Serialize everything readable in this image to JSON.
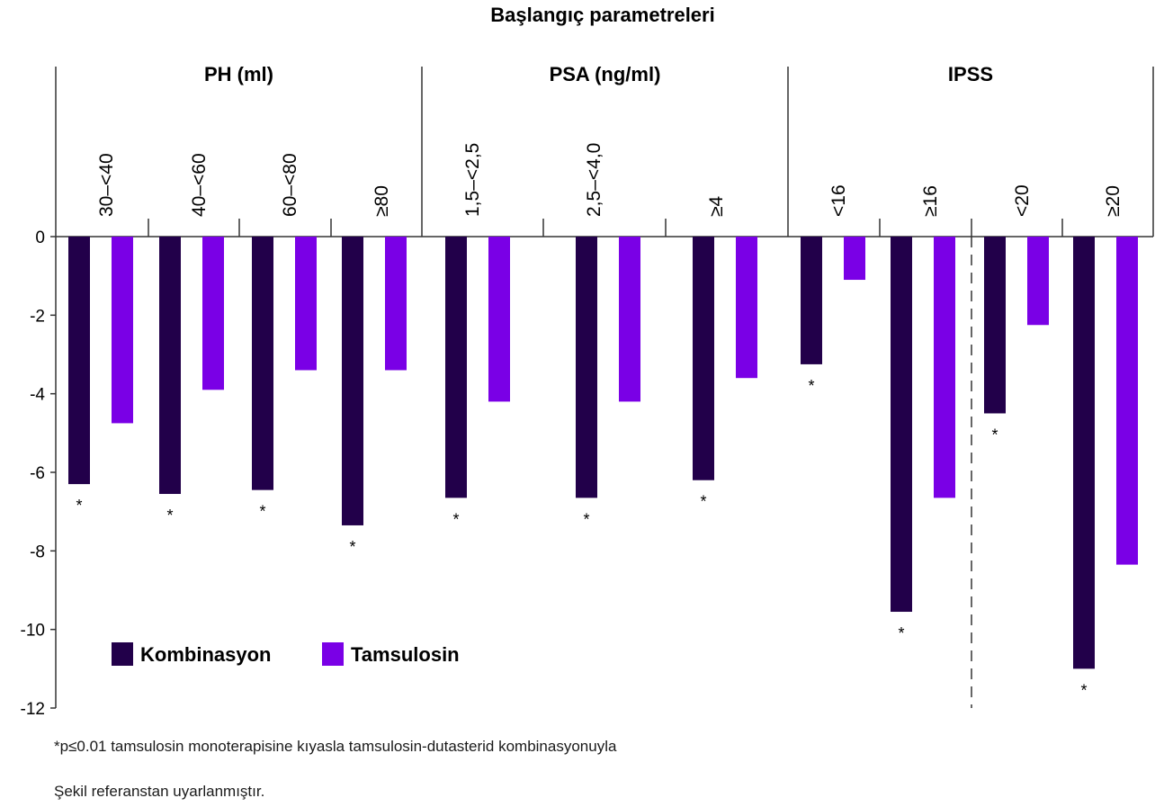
{
  "chart_data": {
    "type": "bar",
    "title": "Başlangıç parametreleri",
    "ylim": [
      -12,
      0
    ],
    "yticks": [
      0,
      -2,
      -4,
      -6,
      -8,
      -10,
      -12
    ],
    "groups": [
      {
        "label": "PH (ml)",
        "categories": [
          "30–<40",
          "40–<60",
          "60–<80",
          "≥80"
        ]
      },
      {
        "label": "PSA (ng/ml)",
        "categories": [
          "1,5–<2,5",
          "2,5–<4,0",
          "≥4"
        ]
      },
      {
        "label": "IPSS",
        "categories": [
          "<16",
          "≥16",
          "<20",
          "≥20"
        ]
      }
    ],
    "categories": [
      "30–<40",
      "40–<60",
      "60–<80",
      "≥80",
      "1,5–<2,5",
      "2,5–<4,0",
      "≥4",
      "<16",
      "≥16",
      "<20",
      "≥20"
    ],
    "series": [
      {
        "name": "Kombinasyon",
        "color": "#22004a",
        "values": [
          -6.3,
          -6.55,
          -6.45,
          -7.35,
          -6.65,
          -6.65,
          -6.2,
          -3.25,
          -9.55,
          -4.5,
          -11.0
        ]
      },
      {
        "name": "Tamsulosin",
        "color": "#7a00e6",
        "values": [
          -4.75,
          -3.9,
          -3.4,
          -3.4,
          -4.2,
          -4.2,
          -3.6,
          -1.1,
          -6.65,
          -2.25,
          -8.35
        ]
      }
    ],
    "significance_marker": "*",
    "legend": "bottom-left",
    "grid": false
  },
  "footnotes": {
    "note1": "*p≤0.01 tamsulosin monoterapisine kıyasla tamsulosin-dutasterid kombinasyonuyla",
    "note2": "Şekil referanstan uyarlanmıştır."
  }
}
